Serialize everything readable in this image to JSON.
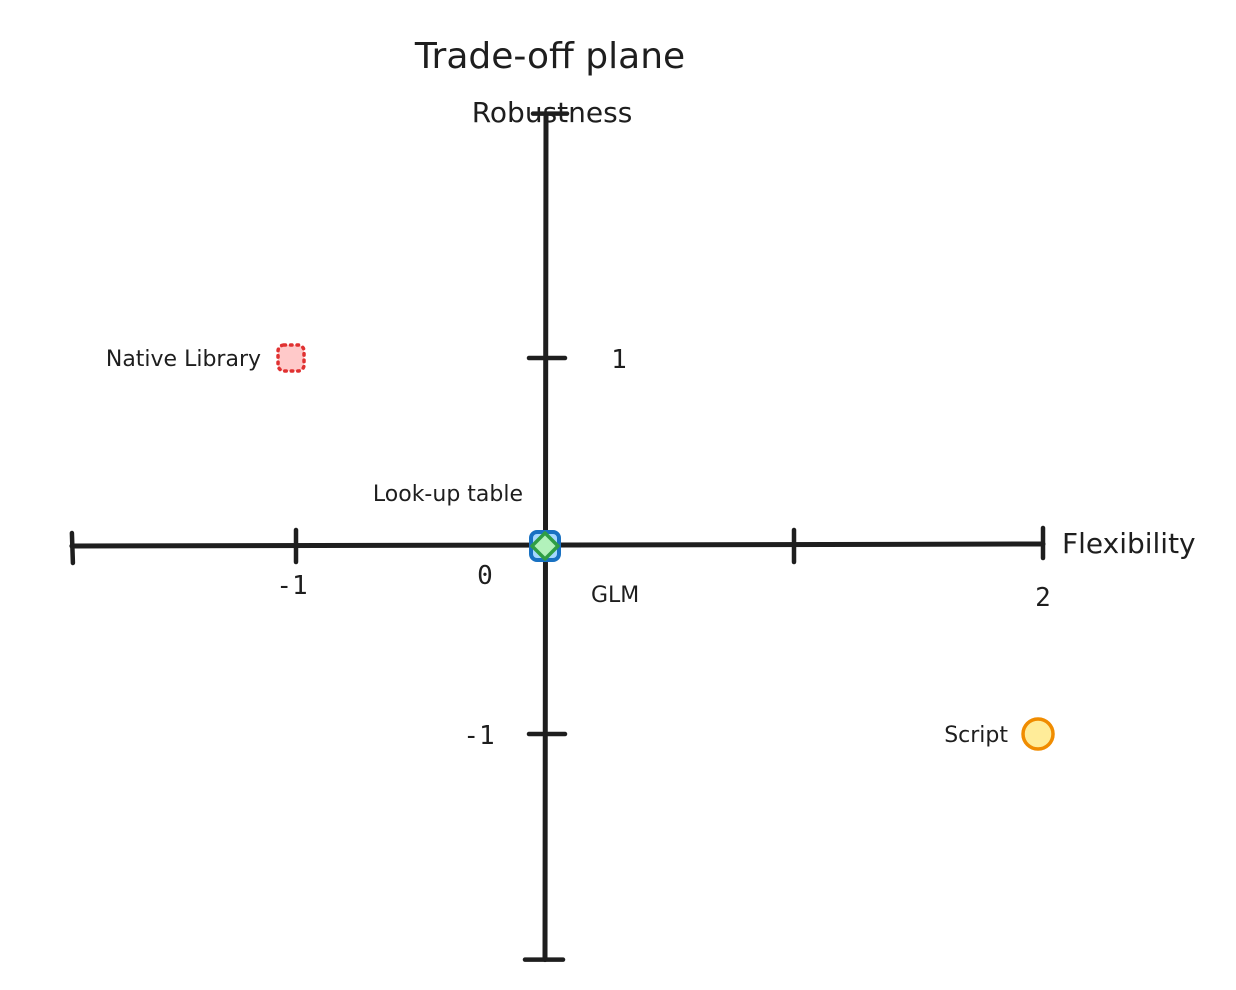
{
  "chart_data": {
    "type": "scatter",
    "title": "Trade-off plane",
    "xlabel": "Flexibility",
    "ylabel": "Robustness",
    "xlim": [
      -1.9,
      2
    ],
    "ylim": [
      -2.2,
      2.3
    ],
    "x_ticks": [
      -1,
      1
    ],
    "x_tick_labels": [
      {
        "value": -1,
        "label": "-1"
      },
      {
        "value": 2,
        "label": "2"
      }
    ],
    "origin_label": "0",
    "y_ticks": [
      1,
      -1
    ],
    "y_tick_labels": [
      {
        "value": 1,
        "label": "1"
      },
      {
        "value": -1,
        "label": "-1"
      }
    ],
    "grid": false,
    "points": [
      {
        "name": "Native Library",
        "x": -1.02,
        "y": 1.0,
        "shape": "square",
        "border": "dotted",
        "fill_color": "#ffc9c9",
        "stroke_color": "#e03131",
        "label_side": "left"
      },
      {
        "name": "Look-up table",
        "x": 0.0,
        "y": 0.0,
        "shape": "square",
        "border": "solid",
        "fill_color": "#a5d8ff",
        "stroke_color": "#1971c2",
        "label_side": "top-left"
      },
      {
        "name": "GLM",
        "x": 0.0,
        "y": 0.0,
        "shape": "diamond",
        "border": "solid",
        "fill_color": "#b2f2bb",
        "stroke_color": "#2f9e44",
        "label_side": "bottom-right"
      },
      {
        "name": "Script",
        "x": 1.98,
        "y": -1.0,
        "shape": "circle",
        "border": "solid",
        "fill_color": "#ffec99",
        "stroke_color": "#f08c00",
        "label_side": "left"
      }
    ]
  },
  "colors": {
    "axis": "#1e1e1e",
    "background": "#ffffff"
  }
}
